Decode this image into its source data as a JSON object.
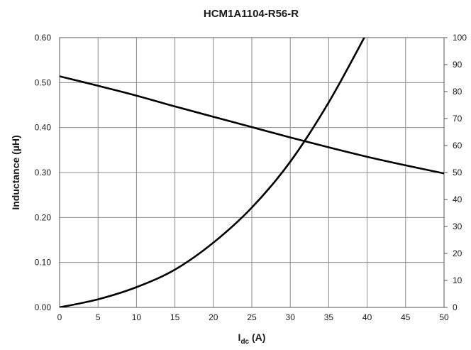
{
  "chart_data": {
    "type": "line",
    "title": "HCM1A1104-R56-R",
    "xlabel_main": "I",
    "xlabel_sub": "dc",
    "xlabel_unit": " (A)",
    "ylabel": "Inductance (µH)",
    "y2label": "",
    "xlim": [
      0,
      50
    ],
    "ylim": [
      0,
      0.6
    ],
    "y2lim": [
      0,
      100
    ],
    "x_ticks": [
      "0",
      "5",
      "10",
      "15",
      "20",
      "25",
      "30",
      "35",
      "40",
      "45",
      "50"
    ],
    "y_ticks": [
      "0.00",
      "0.10",
      "0.20",
      "0.30",
      "0.40",
      "0.50",
      "0.60"
    ],
    "y2_ticks": [
      "0",
      "10",
      "20",
      "30",
      "40",
      "50",
      "60",
      "70",
      "80",
      "90",
      "100"
    ],
    "grid": true,
    "line_color": "#000000",
    "grid_color": "#8c8c8c",
    "series": [
      {
        "axis": "left",
        "x": [
          0,
          5,
          10,
          15,
          20,
          25,
          30,
          35,
          40,
          45,
          50
        ],
        "values": [
          0.514,
          0.493,
          0.471,
          0.447,
          0.424,
          0.401,
          0.378,
          0.356,
          0.335,
          0.316,
          0.298
        ]
      },
      {
        "axis": "right",
        "x": [
          0,
          5,
          10,
          15,
          20,
          25,
          30,
          35,
          40
        ],
        "values": [
          0,
          3,
          7.5,
          14,
          24,
          37,
          54,
          76,
          102
        ]
      }
    ]
  }
}
